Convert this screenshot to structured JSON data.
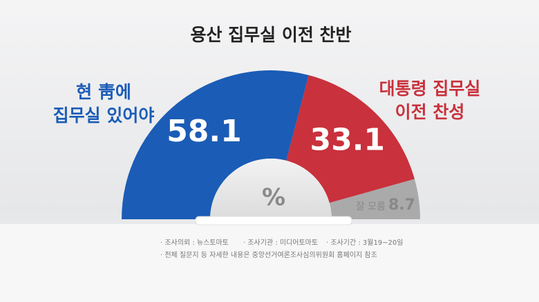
{
  "chart_data": {
    "type": "pie",
    "title": "용산 집무실 이전 찬반",
    "categories": [
      [
        "현 靑에",
        "집무실 있어야"
      ],
      [
        "대통령 집무실",
        "이전 찬성"
      ],
      [
        "잘 모름"
      ]
    ],
    "values": [
      58.1,
      33.1,
      8.7
    ],
    "colors": [
      "#1b5cb6",
      "#c9313c",
      "#aaaaaa"
    ],
    "label_colors": [
      "#1b5cb6",
      "#c9313c",
      "#888888"
    ],
    "unit": "%",
    "notes": [
      "· 조사의뢰 : 뉴스토마토",
      "· 조사기관 : 미디어토마토",
      "· 조사기간 : 3월19~20일",
      "· 전체 질문지 등 자세한 내용은 중앙선거여론조사심의위원회 홈페이지 참조"
    ]
  }
}
